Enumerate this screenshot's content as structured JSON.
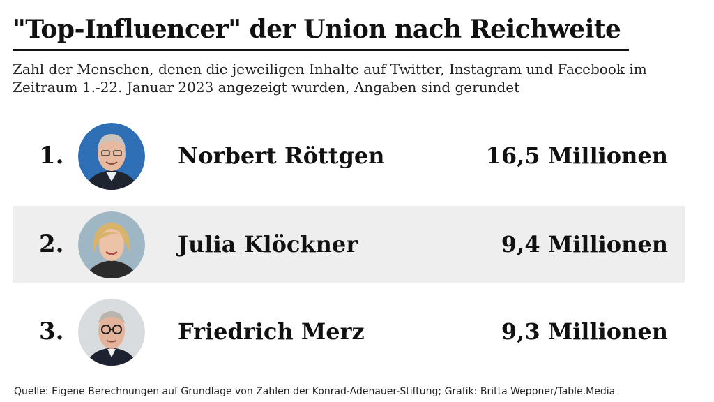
{
  "title": "\"Top-Influencer\" der Union nach Reichweite",
  "subtitle": "Zahl der Menschen, denen die jeweiligen Inhalte auf Twitter, Instagram und Facebook im Zeitraum 1.-22. Januar 2023 angezeigt wurden, Angaben sind gerundet",
  "source": "Quelle: Eigene Berechnungen auf Grundlage von Zahlen der Konrad-Adenauer-Stiftung; Grafik: Britta Weppner/Table.Media",
  "chart_data": {
    "type": "table",
    "columns": [
      "rank",
      "name",
      "value"
    ],
    "rows": [
      {
        "rank": "1.",
        "name": "Norbert Röttgen",
        "value_label": "16,5 Millionen",
        "value": 16.5,
        "photo_bg": "#2f6fb5"
      },
      {
        "rank": "2.",
        "name": "Julia Klöckner",
        "value_label": "9,4 Millionen",
        "value": 9.4,
        "photo_bg": "#9fb6c4"
      },
      {
        "rank": "3.",
        "name": "Friedrich Merz",
        "value_label": "9,3 Millionen",
        "value": 9.3,
        "photo_bg": "#d9dcdf"
      }
    ],
    "unit": "Millionen",
    "row_shading": "alternate-middle"
  }
}
